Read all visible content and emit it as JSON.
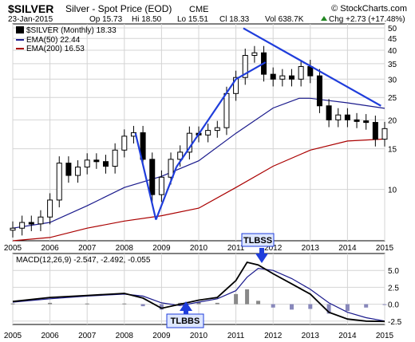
{
  "header": {
    "symbol": "$SILVER",
    "description": "Silver - Spot Price (EOD)",
    "exchange": "CME",
    "watermark": "© StockCharts.com",
    "date": "23-Jan-2015",
    "open": "Op 15.73",
    "high": "Hi 18.50",
    "low": "Lo 15.51",
    "close": "Cl 18.33",
    "volume": "Vol 638.7K",
    "change": "Chg +2.73 (+17.48%)",
    "change_up_icon": "triangle-up-icon"
  },
  "legend": {
    "price": "$SILVER (Monthly) 18.33",
    "ema50": "EMA(50) 22.44",
    "ema200": "EMA(200) 16.53"
  },
  "macd_panel": {
    "title": "MACD(12,26,9) -2.547, -2.492, -0.055"
  },
  "annotations": {
    "tlbss": "TLBSS",
    "tlbbs": "TLBBS"
  },
  "colors": {
    "ema50": "#1a1a8c",
    "ema200": "#aa0000",
    "trendline": "#1f3ddb",
    "histogram": "#8888bb",
    "histogram_pos": "#888888",
    "candle": "#000000",
    "grid": "#d4d4d4",
    "arrow": "#1f3ddb"
  },
  "chart_data": [
    {
      "type": "candlestick",
      "scale": "log",
      "x_ticks": [
        "2005",
        "2006",
        "2007",
        "2008",
        "2009",
        "2010",
        "2011",
        "2012",
        "2013",
        "2014",
        "2015"
      ],
      "y_ticks": [
        10,
        15,
        20,
        25,
        30,
        35,
        40,
        45,
        50
      ],
      "ylim": [
        6,
        52
      ],
      "series": [
        {
          "name": "$SILVER (Monthly)",
          "x": [
            2005.0,
            2005.25,
            2005.5,
            2005.75,
            2006.0,
            2006.25,
            2006.5,
            2006.75,
            2007.0,
            2007.25,
            2007.5,
            2007.75,
            2008.0,
            2008.25,
            2008.5,
            2008.75,
            2009.0,
            2009.25,
            2009.5,
            2009.75,
            2010.0,
            2010.25,
            2010.5,
            2010.75,
            2011.0,
            2011.25,
            2011.5,
            2011.75,
            2012.0,
            2012.25,
            2012.5,
            2012.75,
            2013.0,
            2013.25,
            2013.5,
            2013.75,
            2014.0,
            2014.25,
            2014.5,
            2014.75,
            2015.0
          ],
          "values": [
            6.8,
            7.2,
            7.1,
            7.6,
            9.0,
            13.0,
            11.5,
            12.5,
            13.4,
            13.2,
            12.6,
            14.8,
            17.0,
            17.6,
            13.5,
            9.5,
            11.3,
            13.5,
            14.5,
            17.5,
            17.2,
            18.0,
            18.5,
            26.0,
            30.5,
            38.0,
            39.0,
            31.5,
            30.0,
            31.0,
            30.0,
            34.0,
            31.0,
            23.0,
            20.0,
            21.0,
            20.0,
            19.8,
            19.5,
            16.5,
            18.33
          ]
        },
        {
          "name": "EMA(50)",
          "x": [
            2005.0,
            2006.0,
            2007.0,
            2008.0,
            2009.0,
            2010.0,
            2011.0,
            2012.0,
            2012.7,
            2013.0,
            2014.0,
            2015.0
          ],
          "values": [
            6.8,
            7.2,
            8.5,
            10.2,
            11.4,
            13.3,
            17.5,
            22.5,
            24.8,
            24.8,
            23.7,
            22.44
          ]
        },
        {
          "name": "EMA(200)",
          "x": [
            2005.0,
            2006.0,
            2007.0,
            2008.0,
            2009.0,
            2010.0,
            2011.0,
            2012.0,
            2013.0,
            2014.0,
            2015.0
          ],
          "values": [
            6.0,
            6.2,
            6.8,
            7.3,
            7.7,
            8.3,
            10.2,
            12.6,
            14.8,
            16.2,
            16.53
          ]
        }
      ]
    },
    {
      "type": "line",
      "x_ticks": [
        "2005",
        "2006",
        "2007",
        "2008",
        "2009",
        "2010",
        "2011",
        "2012",
        "2013",
        "2014",
        "2015"
      ],
      "y_ticks": [
        -2.5,
        0.0,
        2.5,
        5.0
      ],
      "ylim": [
        -3.0,
        7.5
      ],
      "series": [
        {
          "name": "MACD",
          "x": [
            2005.0,
            2006.0,
            2007.0,
            2008.0,
            2008.5,
            2009.0,
            2009.5,
            2010.0,
            2010.5,
            2011.0,
            2011.3,
            2011.6,
            2012.0,
            2012.5,
            2013.0,
            2013.5,
            2014.0,
            2014.5,
            2015.0
          ],
          "values": [
            0.4,
            1.0,
            1.3,
            1.6,
            0.9,
            -0.6,
            0.0,
            0.6,
            1.0,
            3.5,
            6.2,
            5.8,
            4.5,
            3.0,
            1.5,
            -1.2,
            -2.2,
            -2.5,
            -2.547
          ]
        },
        {
          "name": "Signal",
          "x": [
            2005.0,
            2006.0,
            2007.0,
            2008.0,
            2008.5,
            2009.0,
            2009.5,
            2010.0,
            2010.5,
            2011.0,
            2011.3,
            2011.6,
            2012.0,
            2012.5,
            2013.0,
            2013.5,
            2014.0,
            2014.5,
            2015.0
          ],
          "values": [
            0.3,
            0.8,
            1.2,
            1.5,
            1.2,
            0.2,
            -0.2,
            0.3,
            0.8,
            2.0,
            4.0,
            5.3,
            5.0,
            3.8,
            2.2,
            0.2,
            -1.2,
            -2.0,
            -2.492
          ]
        },
        {
          "name": "Histogram",
          "x": [
            2005.0,
            2006.0,
            2007.0,
            2008.0,
            2008.5,
            2009.0,
            2009.5,
            2010.0,
            2010.5,
            2011.0,
            2011.3,
            2011.6,
            2012.0,
            2012.5,
            2013.0,
            2013.5,
            2014.0,
            2014.5,
            2015.0
          ],
          "values": [
            0.1,
            0.2,
            0.1,
            0.1,
            -0.3,
            -0.8,
            0.2,
            0.3,
            0.2,
            1.5,
            2.2,
            0.5,
            -0.5,
            -0.8,
            -0.7,
            -1.4,
            -1.0,
            -0.5,
            -0.055
          ]
        }
      ]
    }
  ]
}
